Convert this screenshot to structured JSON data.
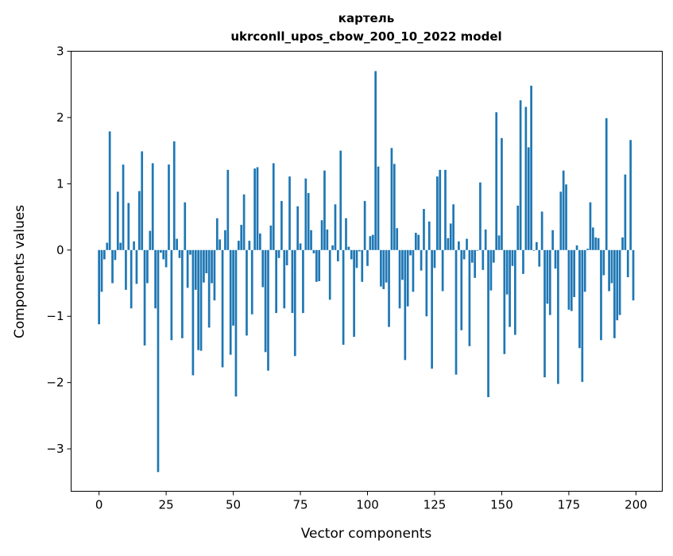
{
  "chart_data": {
    "type": "bar",
    "title_lines": [
      "картель",
      "ukrconll_upos_cbow_200_10_2022 model"
    ],
    "xlabel": "Vector components",
    "ylabel": "Components values",
    "xlim": [
      -10.4,
      209.8
    ],
    "ylim": [
      -3.64,
      3.0
    ],
    "xticks": [
      0,
      25,
      50,
      75,
      100,
      125,
      150,
      175,
      200
    ],
    "xtick_labels": [
      "0",
      "25",
      "50",
      "75",
      "100",
      "125",
      "150",
      "175",
      "200"
    ],
    "yticks": [
      3,
      2,
      1,
      0,
      -1,
      -2,
      -3
    ],
    "ytick_labels": [
      "3",
      "2",
      "1",
      "0",
      "−1",
      "−2",
      "−3"
    ],
    "grid": false,
    "bar_color": "#1f77b4",
    "values": [
      -1.12,
      -0.63,
      -0.14,
      0.11,
      1.79,
      -0.5,
      -0.15,
      0.88,
      0.11,
      1.29,
      -0.6,
      0.71,
      -0.88,
      0.13,
      -0.51,
      0.89,
      1.49,
      -1.44,
      -0.5,
      0.29,
      1.31,
      -0.88,
      -3.35,
      -0.04,
      -0.14,
      -0.26,
      1.29,
      -1.36,
      1.64,
      0.17,
      -0.12,
      -1.33,
      0.72,
      -0.57,
      -0.07,
      -1.89,
      -0.6,
      -1.51,
      -1.52,
      -0.49,
      -0.35,
      -1.17,
      -0.5,
      -0.76,
      0.48,
      0.16,
      -1.77,
      0.3,
      1.21,
      -1.58,
      -1.14,
      -2.21,
      0.14,
      0.38,
      0.84,
      -1.29,
      0.14,
      -0.97,
      1.23,
      1.25,
      0.25,
      -0.56,
      -1.54,
      -1.82,
      0.37,
      1.31,
      -0.95,
      -0.12,
      0.74,
      -0.88,
      -0.23,
      1.11,
      -0.95,
      -1.6,
      0.66,
      0.1,
      -0.95,
      1.08,
      0.86,
      0.3,
      -0.05,
      -0.48,
      -0.47,
      0.45,
      1.2,
      0.31,
      -0.75,
      0.07,
      0.69,
      -0.17,
      1.5,
      -1.43,
      0.48,
      0.05,
      -0.14,
      -1.31,
      -0.27,
      -0.02,
      -0.48,
      0.74,
      -0.24,
      0.21,
      0.23,
      2.7,
      1.26,
      -0.55,
      -0.59,
      -0.49,
      -1.16,
      1.54,
      1.3,
      0.33,
      -0.88,
      -0.45,
      -1.66,
      -0.85,
      -0.08,
      -0.63,
      0.26,
      0.23,
      -0.31,
      0.62,
      -1.0,
      0.43,
      -1.79,
      -0.27,
      1.11,
      1.21,
      -0.62,
      1.21,
      0.18,
      0.4,
      0.69,
      -1.88,
      0.13,
      -1.21,
      -0.14,
      0.17,
      -1.45,
      -0.19,
      -0.42,
      -0.01,
      1.02,
      -0.3,
      0.31,
      -2.22,
      -0.61,
      -0.19,
      2.08,
      0.22,
      1.69,
      -1.57,
      -0.67,
      -1.16,
      -0.24,
      -1.28,
      0.67,
      2.26,
      -0.36,
      2.16,
      1.55,
      2.48,
      -0.01,
      0.12,
      -0.25,
      0.58,
      -1.92,
      -0.81,
      -0.98,
      0.3,
      -0.28,
      -2.02,
      0.88,
      1.2,
      0.99,
      -0.9,
      -0.92,
      -0.71,
      0.07,
      -1.48,
      -1.99,
      -0.63,
      0.02,
      0.72,
      0.34,
      0.19,
      0.18,
      -1.36,
      -0.38,
      1.99,
      -0.62,
      -0.5,
      -1.33,
      -1.06,
      -0.98,
      0.19,
      1.14,
      -0.41,
      1.66,
      -0.76
    ]
  }
}
